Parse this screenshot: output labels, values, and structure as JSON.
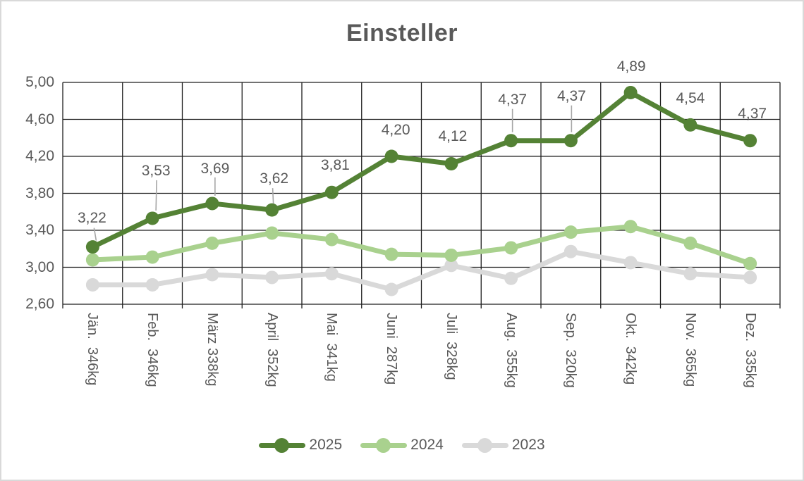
{
  "frame": {
    "border_color": "#d9d9d9",
    "background": "#ffffff"
  },
  "chart_data": {
    "type": "line",
    "title": "Einsteller",
    "categories": [
      "Jän.  346kg",
      "Feb.  346kg",
      "März 338kg",
      "April  352kg",
      "Mai  341kg",
      "Juni  287kg",
      "Juli  328kg",
      "Aug.  355kg",
      "Sep.  320kg",
      "Okt.  342kg",
      "Nov.  365kg",
      "Dez.  335kg"
    ],
    "series": [
      {
        "name": "2025",
        "color": "#548235",
        "values": [
          3.22,
          3.53,
          3.69,
          3.62,
          3.81,
          4.2,
          4.12,
          4.37,
          4.37,
          4.89,
          4.54,
          4.37
        ],
        "labels": [
          "3,22",
          "3,53",
          "3,69",
          "3,62",
          "3,81",
          "4,20",
          "4,12",
          "4,37",
          "4,37",
          "4,89",
          "4,54",
          "4,37"
        ],
        "show_labels": true
      },
      {
        "name": "2024",
        "color": "#A9D18E",
        "values": [
          3.08,
          3.11,
          3.26,
          3.37,
          3.3,
          3.14,
          3.13,
          3.21,
          3.38,
          3.44,
          3.26,
          3.04
        ],
        "show_labels": false
      },
      {
        "name": "2023",
        "color": "#D9D9D9",
        "values": [
          2.81,
          2.81,
          2.92,
          2.89,
          2.93,
          2.76,
          3.02,
          2.88,
          3.17,
          3.05,
          2.93,
          2.89
        ],
        "show_labels": false
      }
    ],
    "y_ticks": [
      "5,00",
      "4,60",
      "4,20",
      "3,80",
      "3,40",
      "3,00",
      "2,60"
    ],
    "ylim": [
      2.6,
      5.0
    ],
    "y_step": 0.4,
    "grid": true,
    "legend_position": "bottom",
    "text_color": "#595959",
    "grid_color": "#1f1f1f",
    "leader_color": "#a6a6a6"
  }
}
